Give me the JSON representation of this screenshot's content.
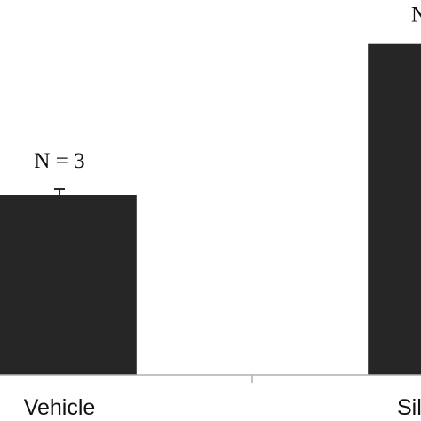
{
  "chart_data": {
    "type": "bar",
    "categories": [
      "Vehicle",
      "Sil"
    ],
    "values": [
      1,
      1.84
    ],
    "errors": [
      0.03,
      null
    ],
    "annotations": [
      "N = 3",
      "N"
    ],
    "color": "#262626",
    "ylim": [
      0,
      2.08
    ]
  }
}
